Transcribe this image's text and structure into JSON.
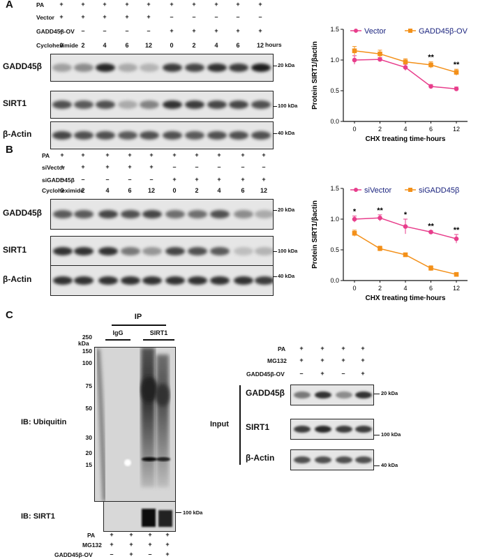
{
  "panels": {
    "A": "A",
    "B": "B",
    "C": "C"
  },
  "blotA": {
    "treat_labels": [
      "PA",
      "Vector",
      "GADD45β-OV",
      "Cycloheximide"
    ],
    "signs": [
      [
        "+",
        "+",
        "+",
        "+",
        "+",
        "+",
        "+",
        "+",
        "+",
        "+"
      ],
      [
        "+",
        "+",
        "+",
        "+",
        "+",
        "–",
        "–",
        "–",
        "–",
        "–"
      ],
      [
        "–",
        "–",
        "–",
        "–",
        "–",
        "+",
        "+",
        "+",
        "+",
        "+"
      ]
    ],
    "times": [
      "0",
      "2",
      "4",
      "6",
      "12",
      "0",
      "2",
      "4",
      "6",
      "12"
    ],
    "time_unit": "hours",
    "blots": [
      {
        "label": "GADD45β",
        "marker": "20 kDa",
        "intensity": [
          0.35,
          0.45,
          0.95,
          0.3,
          0.25,
          0.85,
          0.8,
          0.9,
          0.85,
          1.0
        ]
      },
      {
        "label": "SIRT1",
        "marker": "100 kDa",
        "intensity": [
          0.75,
          0.7,
          0.75,
          0.3,
          0.5,
          0.9,
          0.85,
          0.8,
          0.8,
          0.75
        ]
      },
      {
        "label": "β-Actin",
        "marker": "40 kDa",
        "intensity": [
          0.8,
          0.75,
          0.75,
          0.7,
          0.75,
          0.75,
          0.7,
          0.75,
          0.75,
          0.75
        ]
      }
    ]
  },
  "blotB": {
    "treat_labels": [
      "PA",
      "siVector",
      "siGADD45β",
      "Cycloheximide"
    ],
    "signs": [
      [
        "+",
        "+",
        "+",
        "+",
        "+",
        "+",
        "+",
        "+",
        "+",
        "+"
      ],
      [
        "+",
        "+",
        "+",
        "+",
        "+",
        "–",
        "–",
        "–",
        "–",
        "–"
      ],
      [
        "–",
        "–",
        "–",
        "–",
        "–",
        "+",
        "+",
        "+",
        "+",
        "+"
      ]
    ],
    "times": [
      "0",
      "2",
      "4",
      "6",
      "12",
      "0",
      "2",
      "4",
      "6",
      "12"
    ],
    "blots": [
      {
        "label": "GADD45β",
        "marker": "20 kDa",
        "intensity": [
          0.7,
          0.7,
          0.8,
          0.75,
          0.8,
          0.6,
          0.6,
          0.75,
          0.45,
          0.3
        ]
      },
      {
        "label": "SIRT1",
        "marker": "100 kDa",
        "intensity": [
          0.9,
          0.9,
          0.9,
          0.55,
          0.4,
          0.8,
          0.75,
          0.7,
          0.2,
          0.25
        ]
      },
      {
        "label": "β-Actin",
        "marker": "40 kDa",
        "intensity": [
          0.9,
          0.9,
          0.9,
          0.9,
          0.9,
          0.9,
          0.9,
          0.9,
          0.9,
          0.85
        ]
      }
    ]
  },
  "chartA_labels": {
    "ylabel": "Protein SIRT1/βactin",
    "xlabel": "CHX treating time·hours",
    "legend1": "Vector",
    "legend2": "GADD45β-OV"
  },
  "chartB_labels": {
    "ylabel": "Protein SIRT1/βactin",
    "xlabel": "CHX treating time·hours",
    "legend1": "siVector",
    "legend2": "siGADD45β"
  },
  "chart_data": [
    {
      "type": "line",
      "x": [
        "0",
        "2",
        "4",
        "6",
        "12"
      ],
      "xlabel": "CHX treating time·hours",
      "ylabel": "Protein SIRT1/βactin",
      "ylim": [
        0.0,
        1.5
      ],
      "yticks": [
        "0.0",
        "0.5",
        "1.0",
        "1.5"
      ],
      "legend": "top",
      "series": [
        {
          "name": "Vector",
          "color": "#e83e8c",
          "values": [
            1.0,
            1.01,
            0.88,
            0.57,
            0.53
          ],
          "err": [
            0.07,
            0.03,
            0.05,
            0.03,
            0.03
          ]
        },
        {
          "name": "GADD45β-OV",
          "color": "#f39019",
          "values": [
            1.15,
            1.1,
            0.97,
            0.92,
            0.8
          ],
          "err": [
            0.07,
            0.06,
            0.05,
            0.05,
            0.05
          ]
        }
      ],
      "annotations": [
        {
          "x": "6",
          "text": "**"
        },
        {
          "x": "12",
          "text": "**"
        }
      ]
    },
    {
      "type": "line",
      "x": [
        "0",
        "2",
        "4",
        "6",
        "12"
      ],
      "xlabel": "CHX treating time·hours",
      "ylabel": "Protein SIRT1/βactin",
      "ylim": [
        0.0,
        1.5
      ],
      "yticks": [
        "0.0",
        "0.5",
        "1.0",
        "1.5"
      ],
      "legend": "top",
      "series": [
        {
          "name": "siVector",
          "color": "#e83e8c",
          "values": [
            1.0,
            1.02,
            0.88,
            0.79,
            0.68
          ],
          "err": [
            0.05,
            0.05,
            0.12,
            0.02,
            0.07
          ]
        },
        {
          "name": "siGADD45β",
          "color": "#f39019",
          "values": [
            0.77,
            0.52,
            0.42,
            0.2,
            0.1
          ],
          "err": [
            0.05,
            0.04,
            0.02,
            0.04,
            0.02
          ]
        }
      ],
      "annotations": [
        {
          "x": "0",
          "text": "*"
        },
        {
          "x": "2",
          "text": "**"
        },
        {
          "x": "4",
          "text": "*"
        },
        {
          "x": "6",
          "text": "**"
        },
        {
          "x": "12",
          "text": "**"
        }
      ]
    }
  ],
  "ip": {
    "title": "IP",
    "groups": [
      "IgG",
      "SIRT1"
    ],
    "kda_title": "kDa",
    "markers": [
      "250",
      "150",
      "100",
      "75",
      "50",
      "30",
      "20",
      "15"
    ],
    "ib_ubiquitin": "IB: Ubiquitin",
    "ib_sirt1": "IB: SIRT1",
    "sirt1_marker": "100 kDa",
    "treat_labels": [
      "PA",
      "MG132",
      "GADD45β-OV"
    ],
    "signs": [
      [
        "+",
        "+",
        "+",
        "+"
      ],
      [
        "+",
        "+",
        "+",
        "+"
      ],
      [
        "–",
        "+",
        "–",
        "+"
      ]
    ]
  },
  "input": {
    "title": "Input",
    "treat_labels": [
      "PA",
      "MG132",
      "GADD45β-OV"
    ],
    "signs": [
      [
        "+",
        "+",
        "+",
        "+"
      ],
      [
        "+",
        "+",
        "+",
        "+"
      ],
      [
        "–",
        "+",
        "–",
        "+"
      ]
    ],
    "blots": [
      {
        "label": "GADD45β",
        "marker": "20 kDa",
        "intensity": [
          0.55,
          0.9,
          0.45,
          0.9
        ]
      },
      {
        "label": "SIRT1",
        "marker": "100 kDa",
        "intensity": [
          0.85,
          0.95,
          0.85,
          0.85
        ]
      },
      {
        "label": "β-Actin",
        "marker": "40 kDa",
        "intensity": [
          0.75,
          0.75,
          0.75,
          0.75
        ]
      }
    ]
  }
}
